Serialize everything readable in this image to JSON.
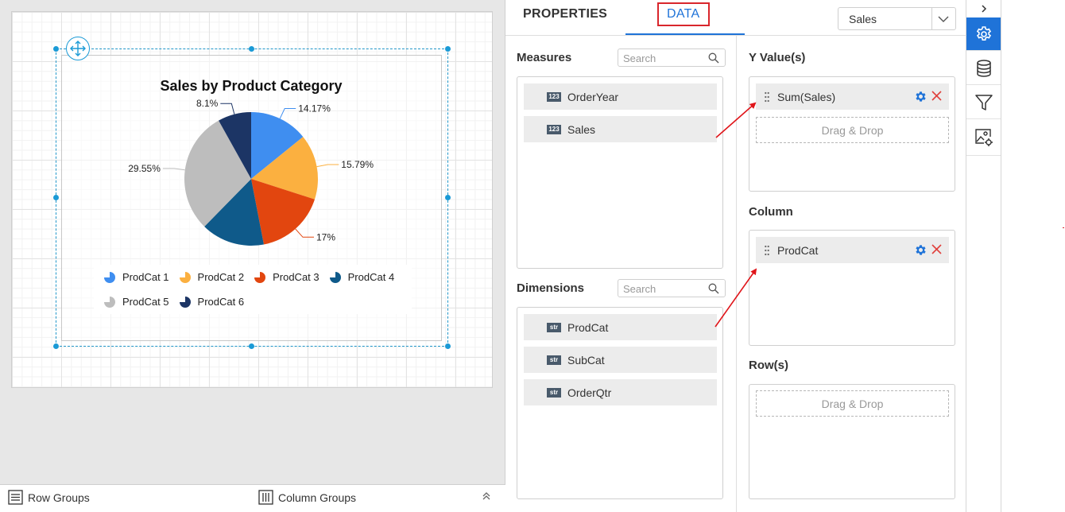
{
  "design": {
    "chart_data": {
      "type": "pie",
      "title": "Sales by Product Category",
      "categories": [
        "ProdCat 1",
        "ProdCat 2",
        "ProdCat 3",
        "ProdCat 4",
        "ProdCat 5",
        "ProdCat 6"
      ],
      "values": [
        14.17,
        15.79,
        17,
        15.4,
        29.55,
        8.1
      ],
      "labels": [
        "14.17%",
        "15.79%",
        "17%",
        "",
        "29.55%",
        "8.1%"
      ],
      "colors": [
        "#3f8ef0",
        "#fbb040",
        "#e2460f",
        "#0f5a8a",
        "#bdbdbd",
        "#1c3565"
      ],
      "legend_position": "bottom"
    }
  },
  "groups": {
    "row_groups_label": "Row Groups",
    "column_groups_label": "Column Groups"
  },
  "panel": {
    "tabs": {
      "properties": "PROPERTIES",
      "data": "DATA"
    },
    "datasource": {
      "selected": "Sales"
    },
    "measures": {
      "title": "Measures",
      "search_placeholder": "Search",
      "items": [
        {
          "badge": "123",
          "label": "OrderYear"
        },
        {
          "badge": "123",
          "label": "Sales"
        }
      ]
    },
    "dimensions": {
      "title": "Dimensions",
      "search_placeholder": "Search",
      "items": [
        {
          "badge": "str",
          "label": "ProdCat"
        },
        {
          "badge": "str",
          "label": "SubCat"
        },
        {
          "badge": "str",
          "label": "OrderQtr"
        }
      ]
    },
    "y_values": {
      "title": "Y Value(s)",
      "chip": "Sum(Sales)",
      "drop_hint": "Drag & Drop"
    },
    "column": {
      "title": "Column",
      "chip": "ProdCat"
    },
    "rows": {
      "title": "Row(s)",
      "drop_hint": "Drag & Drop"
    }
  },
  "rail": {
    "icons": [
      "expand-chevron-icon",
      "gear-icon",
      "database-icon",
      "filter-icon",
      "image-settings-icon"
    ],
    "active_color": "#1f73d8"
  }
}
